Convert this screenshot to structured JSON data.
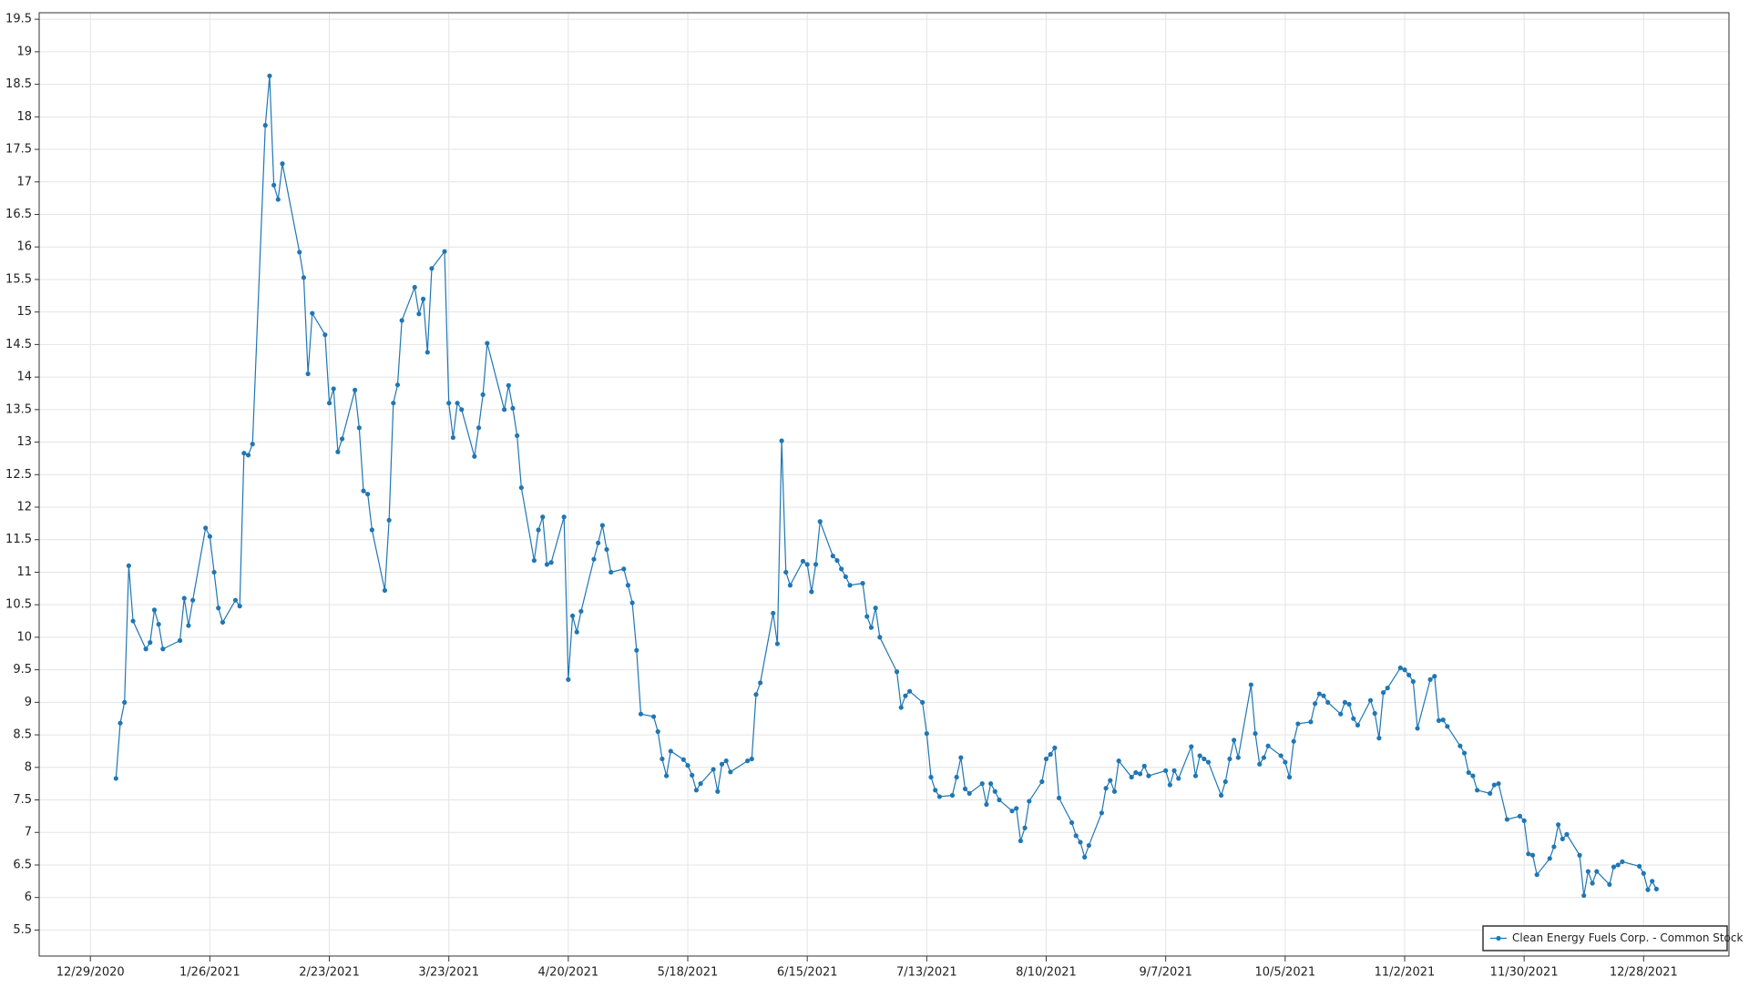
{
  "chart_data": {
    "type": "line",
    "x": [
      "1/4/2021",
      "1/5/2021",
      "1/6/2021",
      "1/7/2021",
      "1/8/2021",
      "1/11/2021",
      "1/12/2021",
      "1/13/2021",
      "1/14/2021",
      "1/15/2021",
      "1/19/2021",
      "1/20/2021",
      "1/21/2021",
      "1/22/2021",
      "1/25/2021",
      "1/26/2021",
      "1/27/2021",
      "1/28/2021",
      "1/29/2021",
      "2/1/2021",
      "2/2/2021",
      "2/3/2021",
      "2/4/2021",
      "2/5/2021",
      "2/8/2021",
      "2/9/2021",
      "2/10/2021",
      "2/11/2021",
      "2/12/2021",
      "2/16/2021",
      "2/17/2021",
      "2/18/2021",
      "2/19/2021",
      "2/22/2021",
      "2/23/2021",
      "2/24/2021",
      "2/25/2021",
      "2/26/2021",
      "3/1/2021",
      "3/2/2021",
      "3/3/2021",
      "3/4/2021",
      "3/5/2021",
      "3/8/2021",
      "3/9/2021",
      "3/10/2021",
      "3/11/2021",
      "3/12/2021",
      "3/15/2021",
      "3/16/2021",
      "3/17/2021",
      "3/18/2021",
      "3/19/2021",
      "3/22/2021",
      "3/23/2021",
      "3/24/2021",
      "3/25/2021",
      "3/26/2021",
      "3/29/2021",
      "3/30/2021",
      "3/31/2021",
      "4/1/2021",
      "4/5/2021",
      "4/6/2021",
      "4/7/2021",
      "4/8/2021",
      "4/9/2021",
      "4/12/2021",
      "4/13/2021",
      "4/14/2021",
      "4/15/2021",
      "4/16/2021",
      "4/19/2021",
      "4/20/2021",
      "4/21/2021",
      "4/22/2021",
      "4/23/2021",
      "4/26/2021",
      "4/27/2021",
      "4/28/2021",
      "4/29/2021",
      "4/30/2021",
      "5/3/2021",
      "5/4/2021",
      "5/5/2021",
      "5/6/2021",
      "5/7/2021",
      "5/10/2021",
      "5/11/2021",
      "5/12/2021",
      "5/13/2021",
      "5/14/2021",
      "5/17/2021",
      "5/18/2021",
      "5/19/2021",
      "5/20/2021",
      "5/21/2021",
      "5/24/2021",
      "5/25/2021",
      "5/26/2021",
      "5/27/2021",
      "5/28/2021",
      "6/1/2021",
      "6/2/2021",
      "6/3/2021",
      "6/4/2021",
      "6/7/2021",
      "6/8/2021",
      "6/9/2021",
      "6/10/2021",
      "6/11/2021",
      "6/14/2021",
      "6/15/2021",
      "6/16/2021",
      "6/17/2021",
      "6/18/2021",
      "6/21/2021",
      "6/22/2021",
      "6/23/2021",
      "6/24/2021",
      "6/25/2021",
      "6/28/2021",
      "6/29/2021",
      "6/30/2021",
      "7/1/2021",
      "7/2/2021",
      "7/6/2021",
      "7/7/2021",
      "7/8/2021",
      "7/9/2021",
      "7/12/2021",
      "7/13/2021",
      "7/14/2021",
      "7/15/2021",
      "7/16/2021",
      "7/19/2021",
      "7/20/2021",
      "7/21/2021",
      "7/22/2021",
      "7/23/2021",
      "7/26/2021",
      "7/27/2021",
      "7/28/2021",
      "7/29/2021",
      "7/30/2021",
      "8/2/2021",
      "8/3/2021",
      "8/4/2021",
      "8/5/2021",
      "8/6/2021",
      "8/9/2021",
      "8/10/2021",
      "8/11/2021",
      "8/12/2021",
      "8/13/2021",
      "8/16/2021",
      "8/17/2021",
      "8/18/2021",
      "8/19/2021",
      "8/20/2021",
      "8/23/2021",
      "8/24/2021",
      "8/25/2021",
      "8/26/2021",
      "8/27/2021",
      "8/30/2021",
      "8/31/2021",
      "9/1/2021",
      "9/2/2021",
      "9/3/2021",
      "9/7/2021",
      "9/8/2021",
      "9/9/2021",
      "9/10/2021",
      "9/13/2021",
      "9/14/2021",
      "9/15/2021",
      "9/16/2021",
      "9/17/2021",
      "9/20/2021",
      "9/21/2021",
      "9/22/2021",
      "9/23/2021",
      "9/24/2021",
      "9/27/2021",
      "9/28/2021",
      "9/29/2021",
      "9/30/2021",
      "10/1/2021",
      "10/4/2021",
      "10/5/2021",
      "10/6/2021",
      "10/7/2021",
      "10/8/2021",
      "10/11/2021",
      "10/12/2021",
      "10/13/2021",
      "10/14/2021",
      "10/15/2021",
      "10/18/2021",
      "10/19/2021",
      "10/20/2021",
      "10/21/2021",
      "10/22/2021",
      "10/25/2021",
      "10/26/2021",
      "10/27/2021",
      "10/28/2021",
      "10/29/2021",
      "11/1/2021",
      "11/2/2021",
      "11/3/2021",
      "11/4/2021",
      "11/5/2021",
      "11/8/2021",
      "11/9/2021",
      "11/10/2021",
      "11/11/2021",
      "11/12/2021",
      "11/15/2021",
      "11/16/2021",
      "11/17/2021",
      "11/18/2021",
      "11/19/2021",
      "11/22/2021",
      "11/23/2021",
      "11/24/2021",
      "11/26/2021",
      "11/29/2021",
      "11/30/2021",
      "12/1/2021",
      "12/2/2021",
      "12/3/2021",
      "12/6/2021",
      "12/7/2021",
      "12/8/2021",
      "12/9/2021",
      "12/10/2021",
      "12/13/2021",
      "12/14/2021",
      "12/15/2021",
      "12/16/2021",
      "12/17/2021",
      "12/20/2021",
      "12/21/2021",
      "12/22/2021",
      "12/23/2021",
      "12/27/2021",
      "12/28/2021",
      "12/29/2021",
      "12/30/2021",
      "12/31/2021"
    ],
    "series": [
      {
        "name": "Clean Energy Fuels Corp. - Common Stock",
        "color": "#1f77b4",
        "values": [
          7.83,
          8.68,
          9.0,
          11.1,
          10.25,
          9.82,
          9.92,
          10.42,
          10.2,
          9.82,
          9.95,
          10.6,
          10.18,
          10.57,
          11.68,
          11.55,
          11.0,
          10.45,
          10.23,
          10.57,
          10.48,
          12.83,
          12.8,
          12.97,
          17.87,
          18.63,
          16.95,
          16.73,
          17.28,
          15.92,
          15.53,
          14.05,
          14.98,
          14.65,
          13.6,
          13.82,
          12.85,
          13.05,
          13.8,
          13.22,
          12.25,
          12.2,
          11.65,
          10.72,
          11.8,
          13.6,
          13.88,
          14.87,
          15.38,
          14.97,
          15.2,
          14.38,
          15.67,
          15.93,
          13.6,
          13.07,
          13.6,
          13.5,
          12.78,
          13.22,
          13.73,
          14.52,
          13.5,
          13.87,
          13.52,
          13.1,
          12.3,
          11.18,
          11.65,
          11.85,
          11.12,
          11.15,
          11.85,
          9.35,
          10.33,
          10.08,
          10.4,
          11.2,
          11.45,
          11.72,
          11.35,
          11.0,
          11.05,
          10.8,
          10.53,
          9.8,
          8.82,
          8.78,
          8.55,
          8.13,
          7.87,
          8.25,
          8.12,
          8.03,
          7.88,
          7.65,
          7.75,
          7.97,
          7.63,
          8.05,
          8.1,
          7.93,
          8.1,
          8.13,
          9.12,
          9.3,
          10.37,
          9.9,
          13.02,
          11.0,
          10.8,
          11.17,
          11.12,
          10.7,
          11.12,
          11.78,
          11.25,
          11.18,
          11.05,
          10.93,
          10.8,
          10.83,
          10.32,
          10.15,
          10.45,
          10.0,
          9.47,
          8.92,
          9.1,
          9.17,
          9.0,
          8.52,
          7.85,
          7.65,
          7.55,
          7.57,
          7.85,
          8.15,
          7.67,
          7.6,
          7.75,
          7.43,
          7.75,
          7.63,
          7.5,
          7.33,
          7.37,
          6.87,
          7.07,
          7.48,
          7.78,
          8.13,
          8.2,
          8.3,
          7.53,
          7.15,
          6.95,
          6.85,
          6.62,
          6.8,
          7.3,
          7.68,
          7.8,
          7.63,
          8.1,
          7.85,
          7.92,
          7.9,
          8.02,
          7.87,
          7.95,
          7.73,
          7.95,
          7.83,
          8.32,
          7.87,
          8.18,
          8.13,
          8.08,
          7.57,
          7.78,
          8.13,
          8.42,
          8.15,
          9.27,
          8.52,
          8.05,
          8.15,
          8.33,
          8.18,
          8.08,
          7.85,
          8.4,
          8.67,
          8.7,
          8.98,
          9.13,
          9.1,
          9.0,
          8.82,
          9.0,
          8.97,
          8.75,
          8.65,
          9.03,
          8.83,
          8.45,
          9.15,
          9.22,
          9.53,
          9.5,
          9.42,
          9.32,
          8.6,
          9.35,
          9.4,
          8.72,
          8.73,
          8.63,
          8.33,
          8.22,
          7.92,
          7.87,
          7.65,
          7.6,
          7.73,
          7.75,
          7.2,
          7.25,
          7.18,
          6.67,
          6.65,
          6.35,
          6.6,
          6.78,
          7.12,
          6.9,
          6.97,
          6.65,
          6.03,
          6.4,
          6.22,
          6.4,
          6.2,
          6.47,
          6.5,
          6.55,
          6.48,
          6.37,
          6.12,
          6.25,
          6.13
        ]
      }
    ],
    "xlim": [
      "12/17/2020",
      "1/17/2022"
    ],
    "xticks": [
      "12/29/2020",
      "1/26/2021",
      "2/23/2021",
      "3/23/2021",
      "4/20/2021",
      "5/18/2021",
      "6/15/2021",
      "7/13/2021",
      "8/10/2021",
      "9/7/2021",
      "10/5/2021",
      "11/2/2021",
      "11/30/2021",
      "12/28/2021"
    ],
    "ylim": [
      5.1,
      19.6
    ],
    "yticks": [
      5.5,
      6,
      6.5,
      7,
      7.5,
      8,
      8.5,
      9,
      9.5,
      10,
      10.5,
      11,
      11.5,
      12,
      12.5,
      13,
      13.5,
      14,
      14.5,
      15,
      15.5,
      16,
      16.5,
      17,
      17.5,
      18,
      18.5,
      19,
      19.5
    ],
    "grid": true,
    "legend": "lower right"
  }
}
